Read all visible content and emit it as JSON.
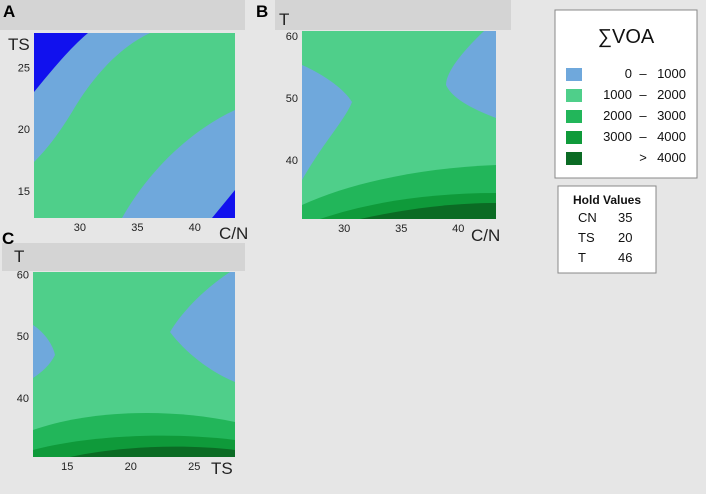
{
  "chart_data": {
    "type": "contour",
    "legend": {
      "title": "∑VOA",
      "entries": [
        {
          "low": "0",
          "sep": "–",
          "high": "1000",
          "color": "#6fa8dc"
        },
        {
          "low": "1000",
          "sep": "–",
          "high": "2000",
          "color": "#4fcf8a"
        },
        {
          "low": "2000",
          "sep": "–",
          "high": "3000",
          "color": "#22b65a"
        },
        {
          "low": "3000",
          "sep": "–",
          "high": "4000",
          "color": "#0f9a3a"
        },
        {
          "low": "",
          "sep": ">",
          "high": "4000",
          "color": "#0b6b24"
        }
      ]
    },
    "extra_color": {
      "below_0_blue": "#1111ee"
    },
    "hold_values": {
      "title": "Hold Values",
      "rows": [
        {
          "name": "CN",
          "value": "35"
        },
        {
          "name": "TS",
          "value": "20"
        },
        {
          "name": "T",
          "value": "46"
        }
      ]
    },
    "panels": [
      {
        "letter": "A",
        "x_var": "C/N",
        "y_var": "TS",
        "x_ticks": [
          30,
          35,
          40
        ],
        "y_ticks": [
          15,
          20,
          25
        ],
        "xlim": [
          26,
          43.5
        ],
        "ylim": [
          12.8,
          27.8
        ]
      },
      {
        "letter": "B",
        "x_var": "C/N",
        "y_var": "T",
        "x_ticks": [
          30,
          35,
          40
        ],
        "y_ticks": [
          40,
          50,
          60
        ],
        "xlim": [
          26.3,
          43.3
        ],
        "ylim": [
          30.5,
          60.8
        ]
      },
      {
        "letter": "C",
        "x_var": "TS",
        "y_var": "T",
        "x_ticks": [
          15,
          20,
          25
        ],
        "y_ticks": [
          40,
          50,
          60
        ],
        "xlim": [
          12.3,
          28.2
        ],
        "ylim": [
          30.4,
          60.4
        ]
      }
    ]
  }
}
